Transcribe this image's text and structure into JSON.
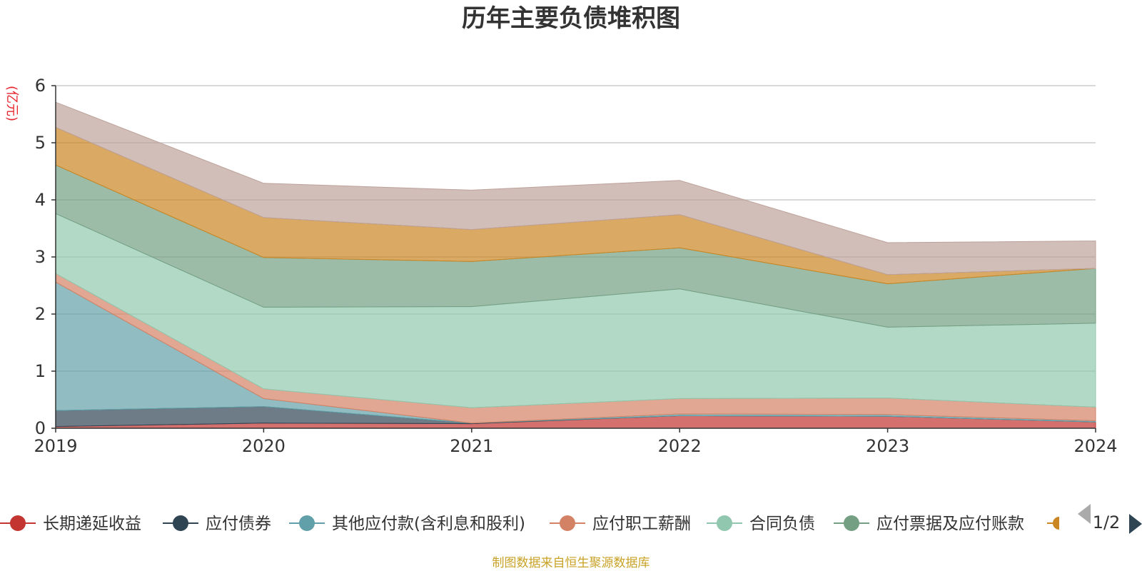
{
  "chart_data": {
    "type": "area",
    "title": "历年主要负债堆积图",
    "unit_label": "(亿元)",
    "x": [
      "2019",
      "2020",
      "2021",
      "2022",
      "2023",
      "2024"
    ],
    "ylim": [
      0,
      6
    ],
    "y_ticks": [
      "0",
      "1",
      "2",
      "3",
      "4",
      "5",
      "6"
    ],
    "grid": true,
    "stacked": true,
    "series": [
      {
        "name": "长期递延收益",
        "color": "#c23531",
        "values": [
          0.03,
          0.09,
          0.08,
          0.22,
          0.21,
          0.11
        ]
      },
      {
        "name": "应付债券",
        "color": "#2f4554",
        "values": [
          0.28,
          0.29,
          0.01,
          0.0,
          0.0,
          0.0
        ]
      },
      {
        "name": "其他应付款(含利息和股利)",
        "color": "#61a0a8",
        "values": [
          2.25,
          0.14,
          0.0,
          0.03,
          0.03,
          0.02
        ]
      },
      {
        "name": "应付职工薪酬",
        "color": "#d48265",
        "values": [
          0.15,
          0.17,
          0.27,
          0.27,
          0.29,
          0.24
        ]
      },
      {
        "name": "合同负债",
        "color": "#91c7ae",
        "values": [
          1.05,
          1.43,
          1.77,
          1.92,
          1.24,
          1.47
        ]
      },
      {
        "name": "应付票据及应付账款",
        "color": "#749f83",
        "values": [
          0.85,
          0.87,
          0.79,
          0.72,
          0.76,
          0.96
        ]
      },
      {
        "name": "",
        "color": "#ca8622",
        "values": [
          0.66,
          0.7,
          0.56,
          0.58,
          0.16,
          0.0
        ]
      },
      {
        "name": "",
        "color": "#bda29a",
        "values": [
          0.44,
          0.6,
          0.69,
          0.6,
          0.56,
          0.48
        ]
      }
    ],
    "legend": {
      "position": "bottom",
      "page_indicator": "1/2"
    }
  },
  "footer": {
    "source": "制图数据来自恒生聚源数据库"
  }
}
